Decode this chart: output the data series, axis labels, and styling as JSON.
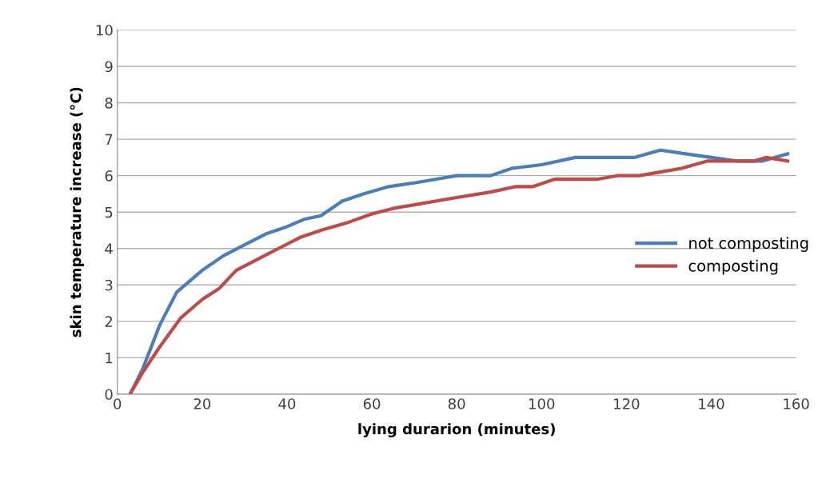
{
  "chart_data": {
    "type": "line",
    "xlabel": "lying durarion (minutes)",
    "ylabel": "skin temperature increase (°C)",
    "xlim": [
      0,
      160
    ],
    "xticks": [
      0,
      20,
      40,
      60,
      80,
      100,
      120,
      140,
      160
    ],
    "ylim": [
      0,
      10
    ],
    "yticks": [
      0,
      1,
      2,
      3,
      4,
      5,
      6,
      7,
      8,
      9,
      10
    ],
    "grid": "y",
    "legend": "right",
    "marker": "none",
    "line_style": "solid",
    "series": [
      {
        "name": "not composting",
        "color": "#4a7ebb",
        "x": [
          3,
          6,
          10,
          14,
          20,
          25,
          30,
          35,
          40,
          44,
          48,
          53,
          58,
          64,
          70,
          75,
          80,
          88,
          93,
          100,
          108,
          115,
          122,
          128,
          134,
          140,
          146,
          152,
          158
        ],
        "values": [
          0,
          0.7,
          1.9,
          2.8,
          3.4,
          3.8,
          4.1,
          4.4,
          4.6,
          4.8,
          4.9,
          5.3,
          5.5,
          5.7,
          5.8,
          5.9,
          6.0,
          6.0,
          6.2,
          6.3,
          6.5,
          6.5,
          6.5,
          6.7,
          6.6,
          6.5,
          6.4,
          6.4,
          6.6
        ]
      },
      {
        "name": "composting",
        "color": "#be4b48",
        "x": [
          3,
          6,
          10,
          15,
          20,
          24,
          28,
          33,
          38,
          43,
          48,
          54,
          60,
          65,
          70,
          80,
          88,
          94,
          98,
          103,
          108,
          113,
          118,
          123,
          128,
          133,
          139,
          145,
          150,
          153,
          158
        ],
        "values": [
          0,
          0.6,
          1.3,
          2.1,
          2.6,
          2.9,
          3.4,
          3.7,
          4.0,
          4.3,
          4.5,
          4.7,
          4.95,
          5.1,
          5.2,
          5.4,
          5.55,
          5.7,
          5.7,
          5.9,
          5.9,
          5.9,
          6.0,
          6.0,
          6.1,
          6.2,
          6.4,
          6.4,
          6.4,
          6.5,
          6.4
        ]
      }
    ]
  }
}
